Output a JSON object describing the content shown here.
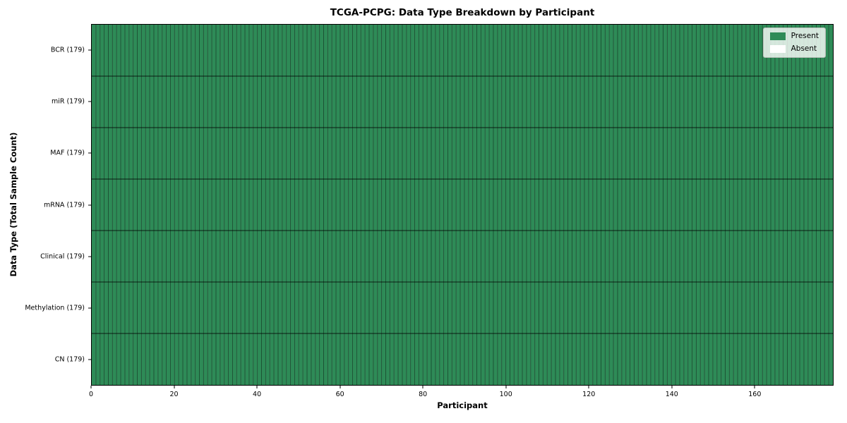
{
  "chart_data": {
    "type": "heatmap",
    "title": "TCGA-PCPG: Data Type Breakdown by Participant",
    "xlabel": "Participant",
    "ylabel": "Data Type (Total Sample Count)",
    "x_ticks": [
      0,
      20,
      40,
      60,
      80,
      100,
      120,
      140,
      160
    ],
    "x_range": [
      0,
      179
    ],
    "n_participants": 179,
    "categories": [
      "BCR (179)",
      "miR (179)",
      "MAF (179)",
      "mRNA (179)",
      "Clinical (179)",
      "Methylation (179)",
      "CN (179)"
    ],
    "series": [
      {
        "name": "BCR",
        "label": "BCR (179)",
        "total": 179,
        "present_count": 179,
        "absent_count": 0
      },
      {
        "name": "miR",
        "label": "miR (179)",
        "total": 179,
        "present_count": 179,
        "absent_count": 0
      },
      {
        "name": "MAF",
        "label": "MAF (179)",
        "total": 179,
        "present_count": 179,
        "absent_count": 0
      },
      {
        "name": "mRNA",
        "label": "mRNA (179)",
        "total": 179,
        "present_count": 179,
        "absent_count": 0
      },
      {
        "name": "Clinical",
        "label": "Clinical (179)",
        "total": 179,
        "present_count": 179,
        "absent_count": 0
      },
      {
        "name": "Methylation",
        "label": "Methylation (179)",
        "total": 179,
        "present_count": 179,
        "absent_count": 0
      },
      {
        "name": "CN",
        "label": "CN (179)",
        "total": 179,
        "present_count": 179,
        "absent_count": 0
      }
    ],
    "legend": {
      "position": "upper-right",
      "entries": [
        {
          "name": "present",
          "label": "Present",
          "color": "#2e8b57"
        },
        {
          "name": "absent",
          "label": "Absent",
          "color": "#ffffff"
        }
      ]
    },
    "colors": {
      "present": "#2e8b57",
      "absent": "#ffffff",
      "cell_edge": "rgba(0,0,0,0.45)",
      "row_edge": "rgba(0,0,0,0.62)",
      "axis": "#000000"
    },
    "grid": true
  }
}
